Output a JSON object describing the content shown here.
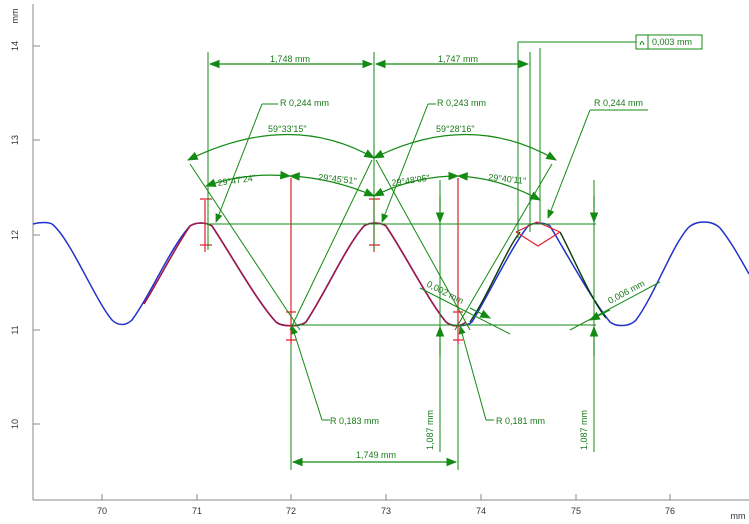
{
  "axes": {
    "x_unit": "mm",
    "y_unit": "mm",
    "x_ticks": [
      "70",
      "71",
      "72",
      "73",
      "74",
      "75",
      "76"
    ],
    "y_ticks": [
      "14",
      "13",
      "12",
      "11",
      "10"
    ]
  },
  "colors": {
    "profile": "#2233cc",
    "fitted_profile": "#a0184a",
    "dimension": "#138a13",
    "fit_marks": "#e0202a",
    "accent_segment": "#0a3a0a"
  },
  "dimensions": {
    "pitch_1": "1,748 mm",
    "pitch_2": "1,747 mm",
    "pitch_bottom": "1,749 mm",
    "flatness": "0,003 mm",
    "radius_crest_1": "R  0,244 mm",
    "radius_crest_2": "R  0,243 mm",
    "radius_crest_3": "R  0,244 mm",
    "radius_root_1": "R  0,183 mm",
    "radius_root_2": "R  0,181 mm",
    "angle_total_1": "59°33'15\"",
    "angle_total_2": "59°28'16\"",
    "half_angle_1": "29°47'24\"",
    "half_angle_2": "29°45'51\"",
    "half_angle_3": "29°48'05\"",
    "half_angle_4": "29°40'11\"",
    "height_1": "1,087 mm",
    "height_2": "1,087 mm",
    "deviation_1": "0,002 mm",
    "deviation_2": "0,006 mm"
  }
}
